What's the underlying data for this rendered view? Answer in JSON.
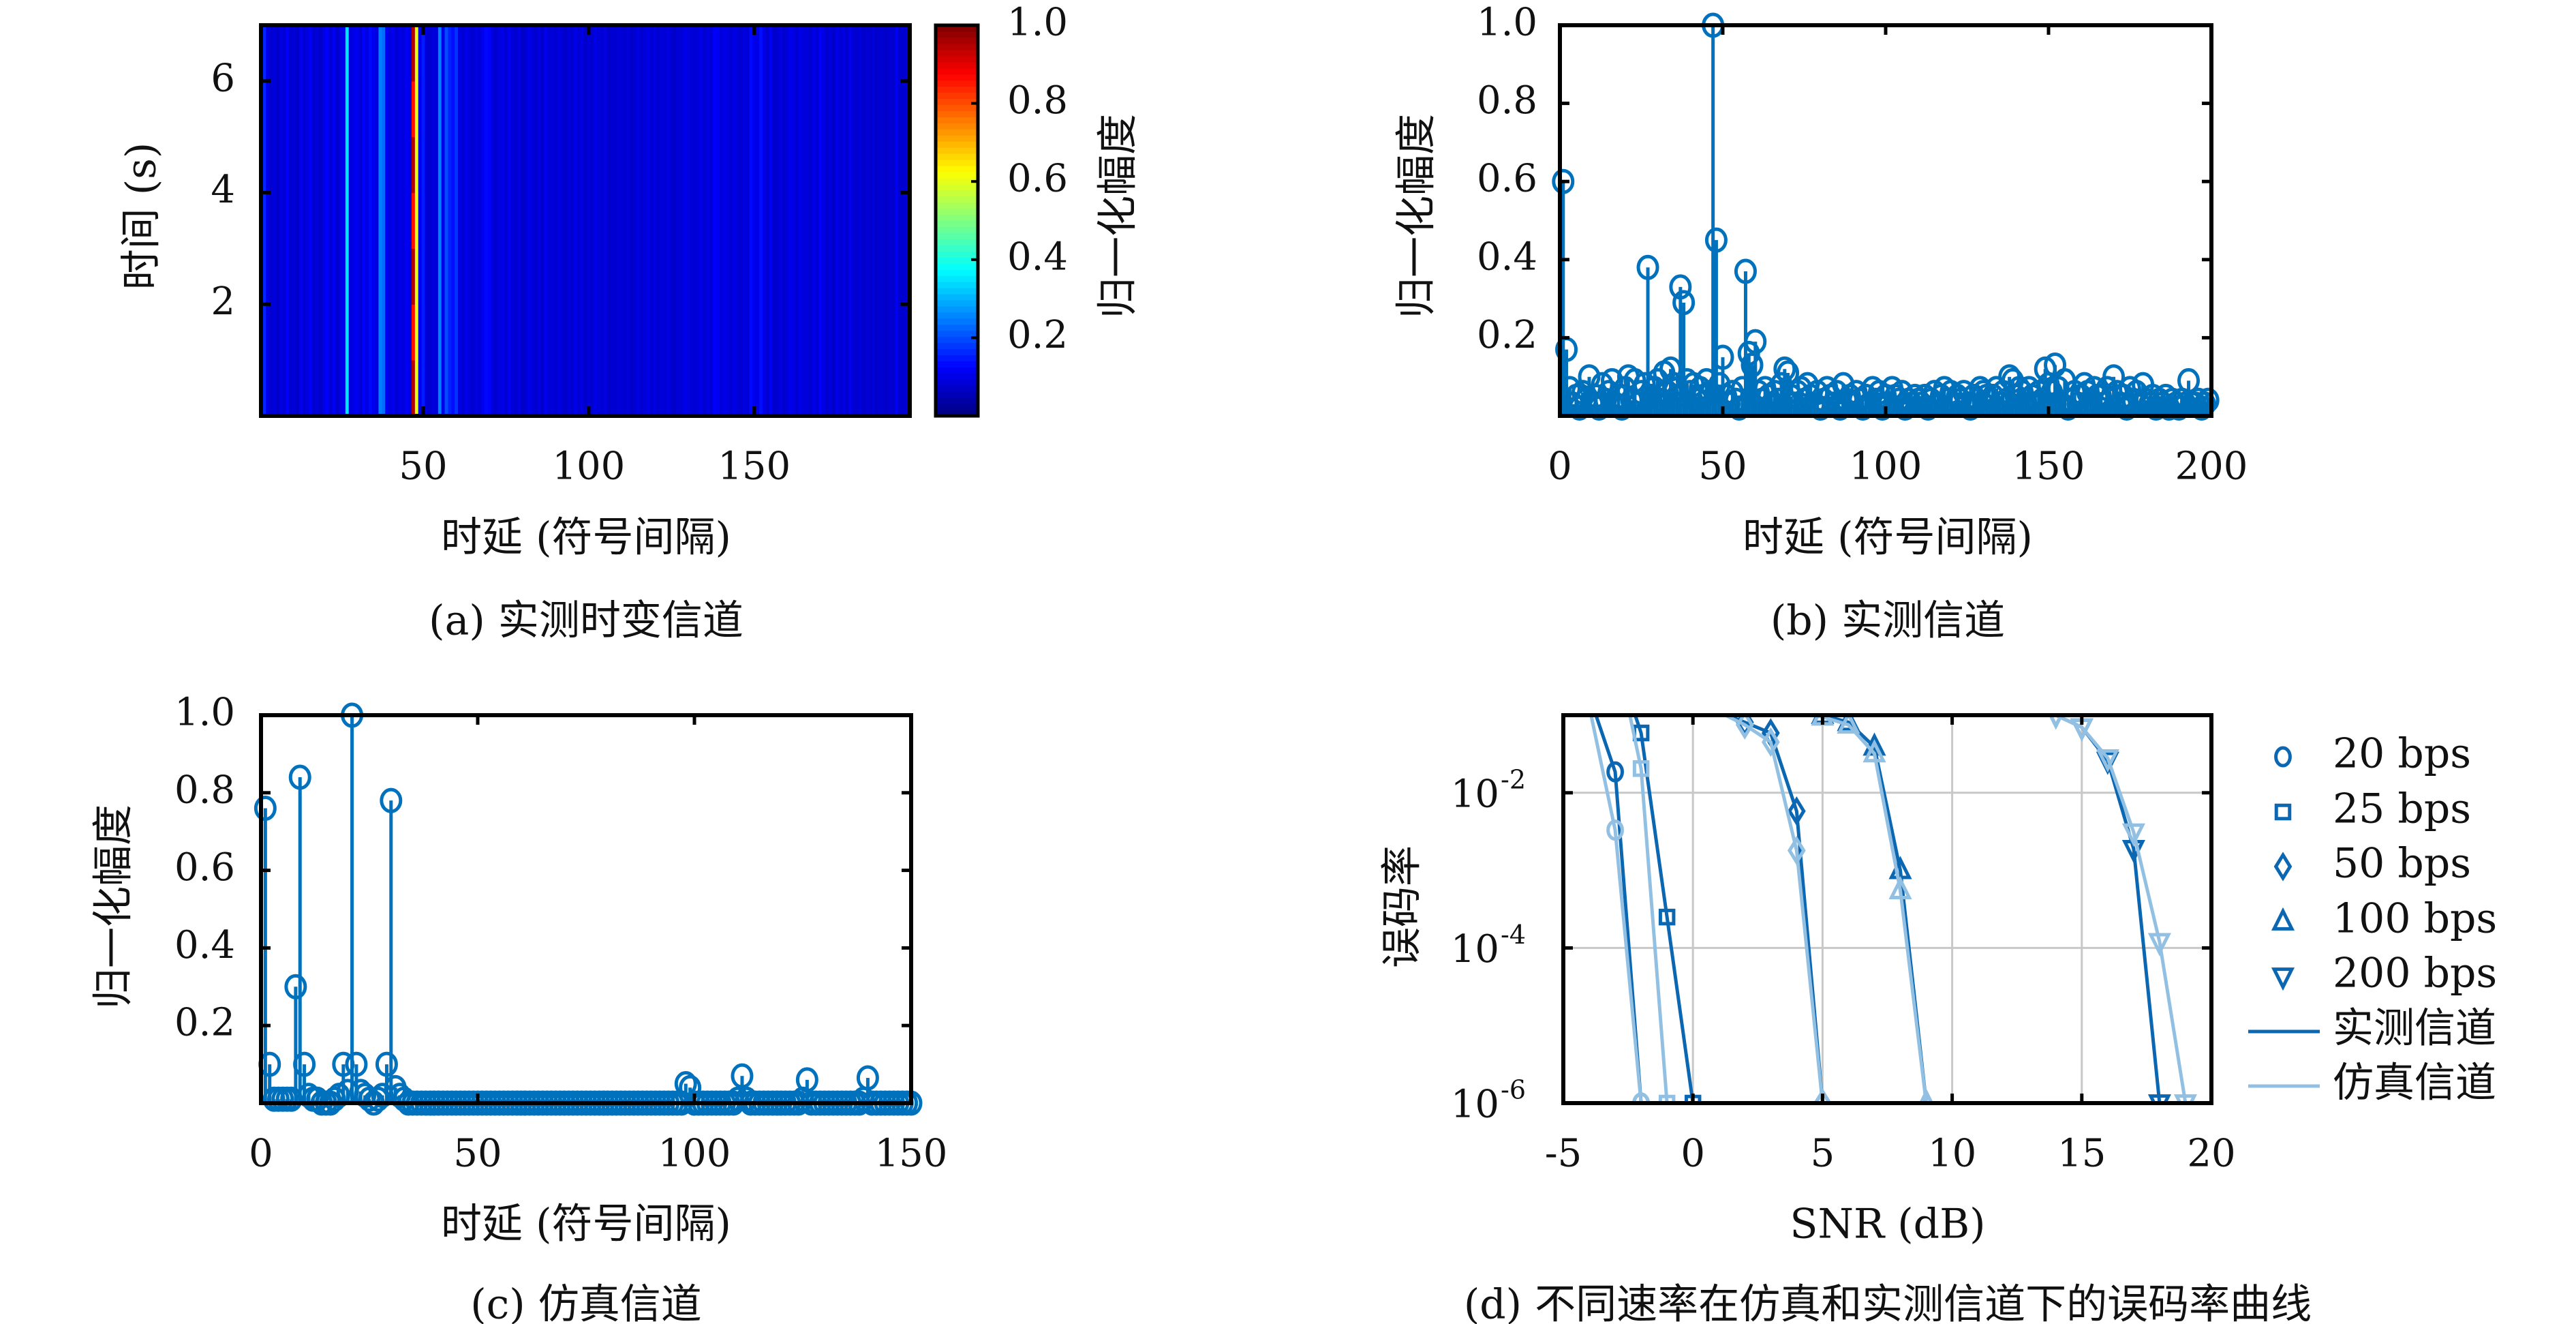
{
  "colors": {
    "stem": "#0072bd",
    "real": "#0b67b2",
    "sim": "#92c0e3",
    "grid": "#c8c8c8"
  },
  "chart_data": [
    {
      "id": "a",
      "type": "heatmap",
      "caption": "(a) 实测时变信道",
      "xlabel": "时延 (符号间隔)",
      "ylabel": "时间 (s)",
      "colorbar_label": "归一化幅度",
      "colormap": "jet",
      "xlim": [
        1,
        197
      ],
      "ylim": [
        0,
        7
      ],
      "clim": [
        0,
        1
      ],
      "xticks": [
        "50",
        "100",
        "150"
      ],
      "yticks": [
        "2",
        "4",
        "6"
      ],
      "cticks": [
        "0.2",
        "0.4",
        "0.6",
        "0.8",
        "1.0"
      ],
      "strong_paths": [
        [
          1,
          0.25
        ],
        [
          27,
          0.35
        ],
        [
          37,
          0.25
        ],
        [
          47,
          0.92
        ],
        [
          48,
          0.6
        ],
        [
          55,
          0.25
        ],
        [
          57,
          0.2
        ]
      ]
    },
    {
      "id": "b",
      "type": "stem",
      "caption": "(b) 实测信道",
      "xlabel": "时延 (符号间隔)",
      "ylabel": "归一化幅度",
      "xlim": [
        0,
        200
      ],
      "ylim": [
        0,
        1
      ],
      "xticks": [
        "0",
        "50",
        "100",
        "150",
        "200"
      ],
      "yticks": [
        "0.2",
        "0.4",
        "0.6",
        "0.8",
        "1.0"
      ],
      "x_start": 1,
      "values": [
        0.6,
        0.17,
        0.07,
        0.03,
        0.05,
        0.02,
        0.06,
        0.04,
        0.1,
        0.03,
        0.05,
        0.02,
        0.08,
        0.04,
        0.06,
        0.09,
        0.03,
        0.05,
        0.02,
        0.07,
        0.1,
        0.04,
        0.09,
        0.03,
        0.06,
        0.08,
        0.38,
        0.05,
        0.07,
        0.09,
        0.04,
        0.11,
        0.06,
        0.12,
        0.08,
        0.05,
        0.33,
        0.29,
        0.09,
        0.06,
        0.08,
        0.04,
        0.07,
        0.05,
        0.09,
        0.06,
        1.0,
        0.45,
        0.08,
        0.15,
        0.05,
        0.03,
        0.06,
        0.04,
        0.02,
        0.07,
        0.37,
        0.16,
        0.13,
        0.19,
        0.06,
        0.04,
        0.07,
        0.05,
        0.03,
        0.06,
        0.04,
        0.08,
        0.12,
        0.11,
        0.05,
        0.03,
        0.06,
        0.07,
        0.04,
        0.08,
        0.05,
        0.03,
        0.06,
        0.02,
        0.04,
        0.07,
        0.05,
        0.03,
        0.06,
        0.02,
        0.08,
        0.04,
        0.05,
        0.03,
        0.06,
        0.04,
        0.02,
        0.05,
        0.03,
        0.07,
        0.04,
        0.06,
        0.02,
        0.05,
        0.03,
        0.07,
        0.05,
        0.04,
        0.06,
        0.02,
        0.04,
        0.03,
        0.05,
        0.04,
        0.03,
        0.05,
        0.02,
        0.04,
        0.06,
        0.03,
        0.05,
        0.07,
        0.04,
        0.06,
        0.03,
        0.05,
        0.04,
        0.06,
        0.03,
        0.02,
        0.05,
        0.04,
        0.07,
        0.06,
        0.05,
        0.04,
        0.05,
        0.07,
        0.03,
        0.06,
        0.04,
        0.1,
        0.09,
        0.05,
        0.07,
        0.06,
        0.04,
        0.07,
        0.05,
        0.03,
        0.06,
        0.04,
        0.12,
        0.08,
        0.06,
        0.13,
        0.07,
        0.03,
        0.09,
        0.02,
        0.04,
        0.06,
        0.03,
        0.05,
        0.08,
        0.06,
        0.04,
        0.07,
        0.05,
        0.05,
        0.03,
        0.07,
        0.04,
        0.1,
        0.06,
        0.03,
        0.05,
        0.02,
        0.07,
        0.04,
        0.06,
        0.03,
        0.08,
        0.04,
        0.03,
        0.05,
        0.02,
        0.04,
        0.03,
        0.05,
        0.02,
        0.04,
        0.03,
        0.02,
        0.04,
        0.03,
        0.09,
        0.03,
        0.03,
        0.04,
        0.02,
        0.03,
        0.04
      ]
    },
    {
      "id": "c",
      "type": "stem",
      "caption": "(c) 仿真信道",
      "xlabel": "时延 (符号间隔)",
      "ylabel": "归一化幅度",
      "xlim": [
        0,
        150
      ],
      "ylim": [
        0,
        1
      ],
      "xticks": [
        "0",
        "50",
        "100",
        "150"
      ],
      "yticks": [
        "0.2",
        "0.4",
        "0.6",
        "0.8",
        "1.0"
      ],
      "x_start": 1,
      "values": [
        0.76,
        0.1,
        0.01,
        0.01,
        0.01,
        0.01,
        0.01,
        0.3,
        0.84,
        0.1,
        0.02,
        0.01,
        0.01,
        0.0,
        0.0,
        0.0,
        0.01,
        0.02,
        0.1,
        0.03,
        1.0,
        0.1,
        0.03,
        0.02,
        0.01,
        0.0,
        0.01,
        0.02,
        0.1,
        0.78,
        0.04,
        0.02,
        0.01,
        0.0,
        0.0,
        0.0,
        0.0,
        0.0,
        0.0,
        0.0,
        0.0,
        0.0,
        0.0,
        0.0,
        0.0,
        0.0,
        0.0,
        0.0,
        0.0,
        0.0,
        0.0,
        0.0,
        0.0,
        0.0,
        0.0,
        0.0,
        0.0,
        0.0,
        0.0,
        0.0,
        0.0,
        0.0,
        0.0,
        0.0,
        0.0,
        0.0,
        0.0,
        0.0,
        0.0,
        0.0,
        0.0,
        0.0,
        0.0,
        0.0,
        0.0,
        0.0,
        0.0,
        0.0,
        0.0,
        0.0,
        0.0,
        0.0,
        0.0,
        0.0,
        0.0,
        0.0,
        0.0,
        0.0,
        0.0,
        0.0,
        0.0,
        0.0,
        0.0,
        0.0,
        0.0,
        0.0,
        0.0,
        0.05,
        0.04,
        0.0,
        0.0,
        0.0,
        0.0,
        0.0,
        0.0,
        0.0,
        0.0,
        0.0,
        0.0,
        0.01,
        0.07,
        0.01,
        0.0,
        0.0,
        0.0,
        0.0,
        0.0,
        0.0,
        0.0,
        0.0,
        0.0,
        0.0,
        0.0,
        0.0,
        0.01,
        0.06,
        0.0,
        0.0,
        0.0,
        0.0,
        0.0,
        0.0,
        0.0,
        0.0,
        0.0,
        0.0,
        0.0,
        0.0,
        0.01,
        0.065,
        0.0,
        0.0,
        0.0,
        0.0,
        0.0,
        0.0,
        0.0,
        0.0,
        0.0,
        0.0
      ]
    },
    {
      "id": "d",
      "type": "line",
      "caption": "(d) 不同速率在仿真和实测信道下的误码率曲线",
      "xlabel": "SNR (dB)",
      "ylabel": "误码率",
      "xlim": [
        -5,
        20
      ],
      "ylim": [
        1e-06,
        0.1
      ],
      "yscale": "log",
      "grid": true,
      "xticks": [
        "-5",
        "0",
        "5",
        "10",
        "15",
        "20"
      ],
      "yticks": [
        {
          "value": 0.01,
          "base": "10",
          "exp": "-2"
        },
        {
          "value": 0.0001,
          "base": "10",
          "exp": "-4"
        },
        {
          "value": 1e-06,
          "base": "10",
          "exp": "-6"
        }
      ],
      "legend_position": "outside-right",
      "legend": [
        {
          "label": "20 bps",
          "marker": "circle"
        },
        {
          "label": "25 bps",
          "marker": "square"
        },
        {
          "label": "50 bps",
          "marker": "diamond"
        },
        {
          "label": "100 bps",
          "marker": "triangle-up"
        },
        {
          "label": "200 bps",
          "marker": "triangle-down"
        },
        {
          "label": "实测信道",
          "line": "real"
        },
        {
          "label": "仿真信道",
          "line": "sim"
        }
      ],
      "series": [
        {
          "rate": "20 bps",
          "channel": "real",
          "marker": "circle",
          "x": [
            -4,
            -3,
            -2
          ],
          "y": [
            0.18,
            0.0186,
            1e-06
          ]
        },
        {
          "rate": "20 bps",
          "channel": "sim",
          "marker": "circle",
          "x": [
            -4,
            -3,
            -2
          ],
          "y": [
            0.13,
            0.0033,
            1e-06
          ]
        },
        {
          "rate": "25 bps",
          "channel": "real",
          "marker": "square",
          "x": [
            -3,
            -2,
            -1,
            0
          ],
          "y": [
            0.6,
            0.059,
            0.00025,
            1e-06
          ]
        },
        {
          "rate": "25 bps",
          "channel": "sim",
          "marker": "square",
          "x": [
            -3,
            -2,
            -1
          ],
          "y": [
            0.8,
            0.0205,
            1e-06
          ]
        },
        {
          "rate": "50 bps",
          "channel": "real",
          "marker": "diamond",
          "x": [
            1,
            2,
            3,
            4,
            5
          ],
          "y": [
            0.11,
            0.081,
            0.059,
            0.0058,
            1e-06
          ]
        },
        {
          "rate": "50 bps",
          "channel": "sim",
          "marker": "diamond",
          "x": [
            1,
            2,
            3,
            4,
            5
          ],
          "y": [
            0.11,
            0.075,
            0.045,
            0.0018,
            1e-06
          ]
        },
        {
          "rate": "100 bps",
          "channel": "real",
          "marker": "triangle-up",
          "x": [
            4,
            5,
            6,
            7,
            8,
            9
          ],
          "y": [
            0.11,
            0.1,
            0.081,
            0.039,
            0.001,
            1e-06
          ]
        },
        {
          "rate": "100 bps",
          "channel": "sim",
          "marker": "triangle-up",
          "x": [
            4,
            5,
            6,
            7,
            8,
            9
          ],
          "y": [
            0.11,
            0.095,
            0.075,
            0.032,
            0.00055,
            1e-06
          ]
        },
        {
          "rate": "200 bps",
          "channel": "real",
          "marker": "triangle-down",
          "x": [
            14,
            15,
            16,
            17,
            18
          ],
          "y": [
            0.1,
            0.07,
            0.026,
            0.0019,
            1e-06
          ]
        },
        {
          "rate": "200 bps",
          "channel": "sim",
          "marker": "triangle-down",
          "x": [
            14,
            15,
            16,
            17,
            18,
            19
          ],
          "y": [
            0.1,
            0.07,
            0.028,
            0.0031,
            0.00012,
            1e-06
          ]
        }
      ]
    }
  ]
}
